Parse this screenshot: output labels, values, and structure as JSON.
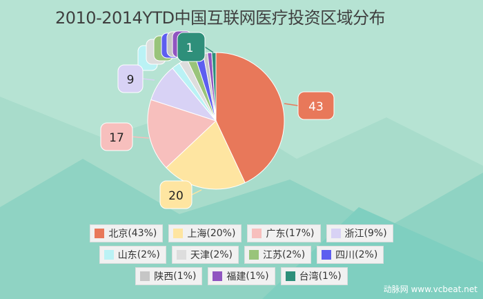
{
  "chart_data": {
    "type": "pie",
    "title": "2010-2014YTD中国互联网医疗投资区域分布",
    "slices": [
      {
        "name": "北京",
        "value": 43,
        "percent": "43%",
        "color": "#e8785a"
      },
      {
        "name": "上海",
        "value": 20,
        "percent": "20%",
        "color": "#fee5a1"
      },
      {
        "name": "广东",
        "value": 17,
        "percent": "17%",
        "color": "#f7bfbd"
      },
      {
        "name": "浙江",
        "value": 9,
        "percent": "9%",
        "color": "#d8d2f5"
      },
      {
        "name": "山东",
        "value": 2,
        "percent": "2%",
        "color": "#baf2f5"
      },
      {
        "name": "天津",
        "value": 2,
        "percent": "2%",
        "color": "#dddddd"
      },
      {
        "name": "江苏",
        "value": 2,
        "percent": "2%",
        "color": "#99c47a"
      },
      {
        "name": "四川",
        "value": 2,
        "percent": "2%",
        "color": "#5d5ef0"
      },
      {
        "name": "陕西",
        "value": 1,
        "percent": "1%",
        "color": "#c6c6c6"
      },
      {
        "name": "福建",
        "value": 1,
        "percent": "1%",
        "color": "#9055c0"
      },
      {
        "name": "台湾",
        "value": 1,
        "percent": "1%",
        "color": "#2e8f7a"
      }
    ],
    "legend_placement": "bottom",
    "data_labels_shown": [
      "北京",
      "上海",
      "广东",
      "浙江",
      "台湾"
    ]
  },
  "legend_rows": [
    [
      0,
      1,
      2,
      3
    ],
    [
      4,
      5,
      6,
      7
    ],
    [
      8,
      9,
      10
    ]
  ],
  "watermark": "动脉网  www.vcbeat.net",
  "colors": {
    "background": "#a8dccb"
  }
}
